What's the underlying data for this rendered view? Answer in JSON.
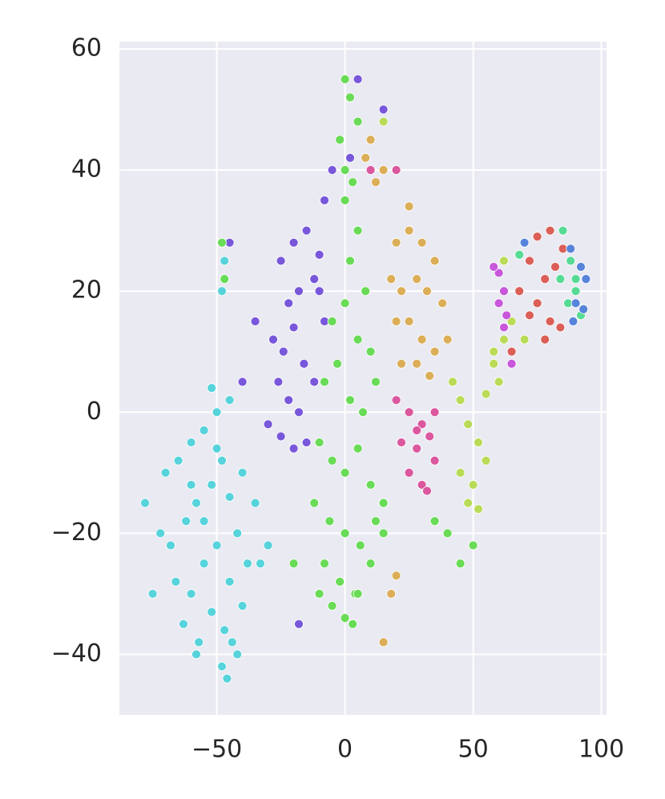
{
  "chart_data": {
    "type": "scatter",
    "xlim": [
      -88,
      102
    ],
    "ylim": [
      -50,
      61.2
    ],
    "xticks": [
      {
        "value": -50,
        "label": "−50"
      },
      0,
      50,
      100
    ],
    "yticks": [
      {
        "value": -40,
        "label": "−40"
      },
      {
        "value": -20,
        "label": "−20"
      },
      0,
      20,
      40,
      60
    ],
    "grid": true,
    "series": [
      {
        "color": "#57d3db",
        "x": [
          -70,
          -65,
          -60,
          -55,
          -50,
          -45,
          -40,
          -35,
          -72,
          -68,
          -62,
          -58,
          -52,
          -48,
          -42,
          -38,
          -66,
          -60,
          -55,
          -50,
          -45,
          -40,
          -63,
          -57,
          -52,
          -47,
          -42,
          -60,
          -55,
          -50,
          -45,
          -48,
          -46,
          -44,
          -48,
          -47,
          -33,
          -30,
          -78,
          -75,
          -58,
          -52
        ],
        "values": [
          -10,
          -8,
          -5,
          -3,
          0,
          2,
          -10,
          -15,
          -20,
          -22,
          -18,
          -15,
          -12,
          -8,
          -20,
          -25,
          -28,
          -30,
          -25,
          -22,
          -28,
          -32,
          -35,
          -38,
          -33,
          -36,
          -40,
          -12,
          -18,
          -6,
          -14,
          -42,
          -44,
          -38,
          20,
          25,
          -25,
          -22,
          -15,
          -30,
          -40,
          4
        ]
      },
      {
        "color": "#7957db",
        "x": [
          -25,
          -20,
          -15,
          -10,
          -22,
          -18,
          -12,
          -8,
          -28,
          -24,
          -20,
          -16,
          -12,
          -26,
          -22,
          -18,
          -30,
          -25,
          -20,
          -15,
          -8,
          -5,
          2,
          5,
          15,
          -35,
          -40,
          -45,
          -18,
          -10
        ],
        "values": [
          25,
          28,
          30,
          26,
          18,
          20,
          22,
          15,
          12,
          10,
          14,
          8,
          5,
          5,
          2,
          0,
          -2,
          -4,
          -6,
          -5,
          35,
          40,
          42,
          55,
          50,
          15,
          5,
          28,
          -35,
          20
        ]
      },
      {
        "color": "#69db57",
        "x": [
          0,
          2,
          5,
          -2,
          0,
          3,
          5,
          8,
          -5,
          0,
          5,
          10,
          -8,
          -3,
          2,
          7,
          12,
          -10,
          -5,
          0,
          5,
          10,
          15,
          -12,
          -6,
          0,
          6,
          12,
          -8,
          -2,
          4,
          10,
          15,
          -5,
          0,
          5,
          2,
          0,
          3,
          40,
          45,
          35,
          50,
          -48,
          -47,
          -20,
          -10
        ],
        "values": [
          55,
          52,
          48,
          45,
          40,
          38,
          30,
          20,
          15,
          18,
          12,
          10,
          5,
          8,
          2,
          0,
          5,
          -5,
          -8,
          -10,
          -6,
          -12,
          -15,
          -15,
          -18,
          -20,
          -22,
          -18,
          -25,
          -28,
          -30,
          -25,
          -20,
          -32,
          -34,
          -30,
          25,
          35,
          -35,
          -20,
          -25,
          -18,
          -22,
          28,
          22,
          -25,
          -30
        ]
      },
      {
        "color": "#dbae57",
        "x": [
          20,
          25,
          30,
          35,
          18,
          22,
          28,
          32,
          38,
          20,
          25,
          30,
          35,
          40,
          22,
          28,
          33,
          8,
          10,
          12,
          15,
          25,
          18,
          15,
          20
        ],
        "values": [
          28,
          30,
          28,
          25,
          22,
          20,
          22,
          20,
          18,
          15,
          15,
          12,
          10,
          12,
          8,
          8,
          6,
          42,
          45,
          38,
          40,
          34,
          -30,
          -38,
          -27
        ]
      },
      {
        "color": "#db579e",
        "x": [
          20,
          25,
          30,
          35,
          22,
          28,
          33,
          25,
          30,
          35,
          28,
          32,
          10,
          20
        ],
        "values": [
          2,
          0,
          -2,
          0,
          -5,
          -6,
          -4,
          -10,
          -12,
          -8,
          -3,
          -13,
          40,
          40
        ]
      },
      {
        "color": "#b9db57",
        "x": [
          42,
          45,
          48,
          52,
          45,
          50,
          55,
          48,
          52,
          55,
          58,
          60,
          62,
          65,
          70,
          15,
          62,
          58
        ],
        "values": [
          5,
          2,
          -2,
          -5,
          -10,
          -12,
          -8,
          -15,
          -16,
          3,
          8,
          5,
          12,
          15,
          12,
          48,
          25,
          10
        ]
      },
      {
        "color": "#db5f57",
        "x": [
          70,
          75,
          80,
          85,
          72,
          78,
          82,
          68,
          75,
          80,
          84,
          72,
          78,
          65
        ],
        "values": [
          28,
          29,
          30,
          27,
          25,
          22,
          24,
          20,
          18,
          15,
          14,
          16,
          12,
          10
        ]
      },
      {
        "color": "#57db94",
        "x": [
          85,
          88,
          90,
          92,
          87,
          90,
          68,
          84
        ],
        "values": [
          30,
          25,
          20,
          16,
          18,
          22,
          26,
          22
        ]
      },
      {
        "color": "#5784db",
        "x": [
          88,
          92,
          94,
          90,
          93,
          70,
          89
        ],
        "values": [
          27,
          24,
          22,
          18,
          17,
          28,
          15
        ]
      },
      {
        "color": "#c857db",
        "x": [
          60,
          62,
          63,
          62,
          60,
          58,
          65
        ],
        "values": [
          23,
          20,
          16,
          14,
          18,
          24,
          8
        ]
      }
    ]
  }
}
